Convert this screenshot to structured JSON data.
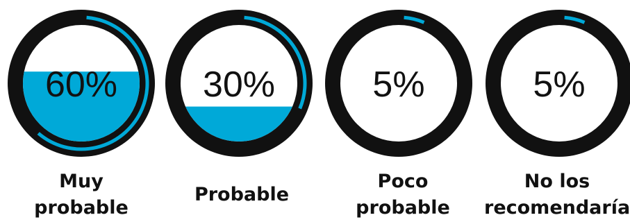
{
  "chart_data": {
    "type": "gauge",
    "title": "",
    "accent_color": "#00A9D8",
    "ring_color": "#111111",
    "items": [
      {
        "label": "Muy\nprobable",
        "value": 60,
        "value_text": "60%"
      },
      {
        "label": "Probable",
        "value": 30,
        "value_text": "30%"
      },
      {
        "label": "Poco\nprobable",
        "value": 5,
        "value_text": "5%"
      },
      {
        "label": "No los\nrecomendaría",
        "value": 5,
        "value_text": "5%"
      }
    ]
  }
}
